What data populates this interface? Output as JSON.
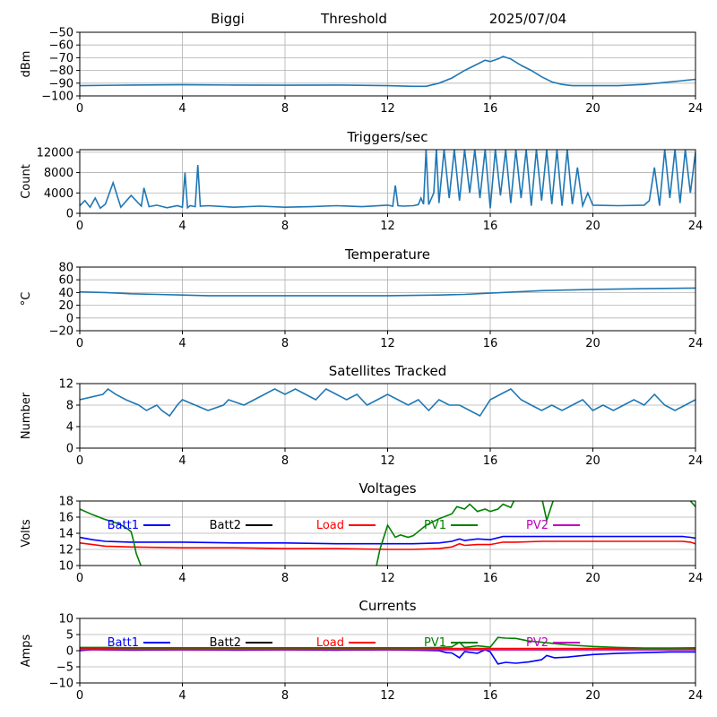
{
  "header": {
    "station": "Biggi",
    "mode": "Threshold",
    "date": "2025/07/04"
  },
  "legend": [
    {
      "label": "Batt1",
      "color": "#0000ff"
    },
    {
      "label": "Batt2",
      "color": "#000000"
    },
    {
      "label": "Load",
      "color": "#ff0000"
    },
    {
      "label": "PV1",
      "color": "#008000"
    },
    {
      "label": "PV2",
      "color": "#c000c0"
    }
  ],
  "chart_data": [
    {
      "type": "line",
      "title": "",
      "ylabel": "dBm",
      "xlabel": "",
      "xlim": [
        0,
        24
      ],
      "ylim": [
        -100,
        -50
      ],
      "xticks": [
        0,
        4,
        8,
        12,
        16,
        20,
        24
      ],
      "yticks": [
        -100,
        -90,
        -80,
        -70,
        -60,
        -50
      ],
      "grid": true,
      "series": [
        {
          "color": "#1f77b4",
          "x": [
            0,
            2,
            4,
            6,
            8,
            10,
            12,
            13,
            13.5,
            14,
            14.5,
            15,
            15.5,
            15.8,
            16,
            16.3,
            16.5,
            16.8,
            17.2,
            17.6,
            18,
            18.4,
            18.8,
            19.2,
            20,
            21,
            22,
            22.5,
            23,
            23.5,
            24
          ],
          "y": [
            -92,
            -91.5,
            -91.3,
            -91.5,
            -91.6,
            -91.5,
            -92,
            -92.5,
            -92.5,
            -90,
            -86,
            -80,
            -75,
            -72,
            -73,
            -71,
            -69,
            -71,
            -76,
            -80,
            -85,
            -89,
            -91,
            -92,
            -92,
            -92,
            -91,
            -90,
            -89,
            -88,
            -87
          ]
        }
      ]
    },
    {
      "type": "line",
      "title": "Triggers/sec",
      "ylabel": "Count",
      "xlabel": "",
      "xlim": [
        0,
        24
      ],
      "ylim": [
        0,
        12500
      ],
      "xticks": [
        0,
        4,
        8,
        12,
        16,
        20,
        24
      ],
      "yticks": [
        0,
        4000,
        8000,
        12000
      ],
      "grid": true,
      "series": [
        {
          "color": "#1f77b4",
          "x": [
            0,
            0.2,
            0.4,
            0.6,
            0.8,
            1.0,
            1.3,
            1.6,
            2.0,
            2.4,
            2.5,
            2.7,
            3.0,
            3.4,
            3.8,
            4.0,
            4.1,
            4.2,
            4.3,
            4.5,
            4.6,
            4.7,
            5.0,
            6.0,
            7.0,
            8.0,
            9.0,
            10.0,
            11.0,
            12.0,
            12.2,
            12.3,
            12.4,
            12.6,
            13.0,
            13.2,
            13.3,
            13.4,
            13.5,
            13.6,
            13.8,
            13.9,
            14.0,
            14.2,
            14.4,
            14.6,
            14.8,
            15.0,
            15.2,
            15.4,
            15.6,
            15.8,
            16.0,
            16.2,
            16.4,
            16.6,
            16.8,
            17.0,
            17.2,
            17.4,
            17.6,
            17.8,
            18.0,
            18.2,
            18.4,
            18.6,
            18.8,
            19.0,
            19.2,
            19.4,
            19.6,
            19.8,
            20.0,
            21.0,
            22.0,
            22.2,
            22.4,
            22.6,
            22.8,
            23.0,
            23.2,
            23.4,
            23.6,
            23.8,
            24
          ],
          "y": [
            1500,
            2500,
            1200,
            3000,
            1000,
            1800,
            6000,
            1200,
            3500,
            1400,
            5000,
            1300,
            1600,
            1100,
            1500,
            1200,
            8000,
            1100,
            1500,
            1300,
            9500,
            1400,
            1500,
            1200,
            1400,
            1200,
            1300,
            1500,
            1300,
            1600,
            1400,
            5500,
            1500,
            1400,
            1500,
            1700,
            3000,
            1800,
            12500,
            1700,
            4000,
            12500,
            2000,
            12500,
            3000,
            12500,
            2500,
            12500,
            4000,
            12500,
            3000,
            12500,
            1000,
            12500,
            3500,
            12500,
            2000,
            12500,
            3000,
            12500,
            1500,
            12500,
            2500,
            12500,
            1800,
            12500,
            1500,
            12500,
            1800,
            9000,
            1500,
            4000,
            1600,
            1500,
            1600,
            2500,
            9000,
            1500,
            12500,
            3000,
            12500,
            2000,
            12500,
            4000,
            12000
          ]
        }
      ]
    },
    {
      "type": "line",
      "title": "Temperature",
      "ylabel": "°C",
      "xlabel": "",
      "xlim": [
        0,
        24
      ],
      "ylim": [
        -20,
        80
      ],
      "xticks": [
        0,
        4,
        8,
        12,
        16,
        20,
        24
      ],
      "yticks": [
        -20,
        0,
        20,
        40,
        60,
        80
      ],
      "grid": true,
      "series": [
        {
          "color": "#1f77b4",
          "x": [
            0,
            1,
            2,
            3,
            4,
            5,
            8,
            12,
            14,
            15,
            16,
            17,
            18,
            19,
            20,
            22,
            24
          ],
          "y": [
            41,
            40,
            38,
            37,
            36,
            35,
            35,
            35,
            36,
            37,
            39,
            41,
            43,
            44,
            45,
            46,
            47
          ]
        }
      ]
    },
    {
      "type": "line",
      "title": "Satellites Tracked",
      "ylabel": "Number",
      "xlabel": "",
      "xlim": [
        0,
        24
      ],
      "ylim": [
        0,
        12
      ],
      "xticks": [
        0,
        4,
        8,
        12,
        16,
        20,
        24
      ],
      "yticks": [
        0,
        4,
        8,
        12
      ],
      "grid": true,
      "series": [
        {
          "color": "#1f77b4",
          "x": [
            0,
            0.9,
            1.1,
            1.4,
            1.8,
            2.3,
            2.6,
            3.0,
            3.2,
            3.5,
            3.8,
            4.0,
            4.5,
            5.0,
            5.6,
            5.8,
            6.4,
            6.8,
            7.2,
            7.6,
            8.0,
            8.4,
            8.8,
            9.2,
            9.6,
            10.0,
            10.4,
            10.8,
            11.2,
            11.6,
            12.0,
            12.4,
            12.8,
            13.2,
            13.6,
            14.0,
            14.4,
            14.8,
            15.2,
            15.6,
            16.0,
            16.4,
            16.8,
            17.2,
            17.6,
            18.0,
            18.4,
            18.8,
            19.2,
            19.6,
            20.0,
            20.4,
            20.8,
            21.2,
            21.6,
            22.0,
            22.4,
            22.8,
            23.2,
            23.6,
            24
          ],
          "y": [
            9,
            10,
            11,
            10,
            9,
            8,
            7,
            8,
            7,
            6,
            8,
            9,
            8,
            7,
            8,
            9,
            8,
            9,
            10,
            11,
            10,
            11,
            10,
            9,
            11,
            10,
            9,
            10,
            8,
            9,
            10,
            9,
            8,
            9,
            7,
            9,
            8,
            8,
            7,
            6,
            9,
            10,
            11,
            9,
            8,
            7,
            8,
            7,
            8,
            9,
            7,
            8,
            7,
            8,
            9,
            8,
            10,
            8,
            7,
            8,
            9
          ]
        }
      ]
    },
    {
      "type": "line",
      "title": "Voltages",
      "ylabel": "Volts",
      "xlabel": "",
      "xlim": [
        0,
        24
      ],
      "ylim": [
        10,
        18
      ],
      "xticks": [
        0,
        4,
        8,
        12,
        16,
        20,
        24
      ],
      "yticks": [
        10,
        12,
        14,
        16,
        18
      ],
      "grid": true,
      "series": [
        {
          "name": "Batt1",
          "color": "#0000ff",
          "x": [
            0,
            0.5,
            1,
            2,
            4,
            6,
            8,
            10,
            12,
            13,
            14,
            14.5,
            14.8,
            15,
            15.5,
            16,
            16.5,
            17,
            18,
            20,
            22,
            23.5,
            23.8,
            24
          ],
          "y": [
            13.5,
            13.2,
            13.0,
            12.9,
            12.9,
            12.8,
            12.8,
            12.7,
            12.7,
            12.7,
            12.8,
            13.0,
            13.3,
            13.1,
            13.3,
            13.2,
            13.6,
            13.6,
            13.6,
            13.6,
            13.6,
            13.6,
            13.5,
            13.4
          ]
        },
        {
          "name": "Load",
          "color": "#ff0000",
          "x": [
            0,
            0.5,
            1,
            2,
            4,
            6,
            8,
            10,
            12,
            13,
            14,
            14.5,
            14.8,
            15,
            15.5,
            16,
            16.5,
            17,
            18,
            20,
            22,
            23.5,
            23.8,
            24
          ],
          "y": [
            12.8,
            12.6,
            12.4,
            12.3,
            12.2,
            12.2,
            12.1,
            12.1,
            12.0,
            12.0,
            12.1,
            12.3,
            12.7,
            12.5,
            12.6,
            12.6,
            12.9,
            12.9,
            13.0,
            13.0,
            13.0,
            13.0,
            12.9,
            12.7
          ]
        },
        {
          "name": "PV1",
          "color": "#008000",
          "x": [
            0,
            0.5,
            1,
            1.5,
            1.8,
            2.0,
            2.1,
            2.2,
            2.5,
            5,
            8,
            11.5,
            11.7,
            12.0,
            12.3,
            12.5,
            12.8,
            13.0,
            13.5,
            14.0,
            14.5,
            14.7,
            15.0,
            15.2,
            15.5,
            15.8,
            16.0,
            16.3,
            16.5,
            16.8,
            17.0,
            17.5,
            18.0,
            18.2,
            18.5,
            19,
            21,
            23.5,
            23.8,
            24
          ],
          "y": [
            17.0,
            16.3,
            15.7,
            15.2,
            14.7,
            14.2,
            13.0,
            11.5,
            9.0,
            9.0,
            9.0,
            9.0,
            12.0,
            15.0,
            13.5,
            13.8,
            13.5,
            13.7,
            15.0,
            15.8,
            16.4,
            17.3,
            17.0,
            17.6,
            16.7,
            17.0,
            16.7,
            17.0,
            17.6,
            17.2,
            18.5,
            18.5,
            18.5,
            15.6,
            18.5,
            18.5,
            18.5,
            18.5,
            18.0,
            17.3
          ]
        }
      ]
    },
    {
      "type": "line",
      "title": "Currents",
      "ylabel": "Amps",
      "xlabel": "",
      "xlim": [
        0,
        24
      ],
      "ylim": [
        -10,
        10
      ],
      "xticks": [
        0,
        4,
        8,
        12,
        16,
        20,
        24
      ],
      "yticks": [
        -10,
        -5,
        0,
        5,
        10
      ],
      "grid": true,
      "series": [
        {
          "name": "Batt1",
          "color": "#0000ff",
          "x": [
            0,
            0.5,
            1,
            2,
            4,
            6,
            8,
            10,
            12,
            13,
            14,
            14.3,
            14.5,
            14.8,
            15,
            15.5,
            15.8,
            16,
            16.3,
            16.6,
            17,
            17.5,
            18,
            18.2,
            18.5,
            19,
            20,
            21,
            22,
            23,
            24
          ],
          "y": [
            0.0,
            0.4,
            0.3,
            0.2,
            0.3,
            0.2,
            0.3,
            0.2,
            0.3,
            0.2,
            0.0,
            -0.6,
            -0.7,
            -2.2,
            -0.3,
            -0.8,
            0.3,
            -0.4,
            -4.1,
            -3.6,
            -3.9,
            -3.5,
            -2.8,
            -1.5,
            -2.2,
            -2.0,
            -1.2,
            -0.8,
            -0.6,
            -0.4,
            -0.4
          ]
        },
        {
          "name": "Load",
          "color": "#ff0000",
          "x": [
            0,
            2,
            4,
            6,
            8,
            10,
            12,
            14,
            16,
            18,
            20,
            22,
            24
          ],
          "y": [
            0.7,
            0.7,
            0.7,
            0.7,
            0.7,
            0.7,
            0.7,
            0.7,
            0.7,
            0.7,
            0.7,
            0.7,
            0.7
          ]
        },
        {
          "name": "PV1",
          "color": "#008000",
          "x": [
            0,
            1,
            2,
            4,
            6,
            8,
            10,
            12,
            13,
            14,
            14.5,
            14.8,
            15,
            15.5,
            16,
            16.3,
            16.6,
            17,
            17.5,
            18,
            18.5,
            19,
            20,
            21,
            22,
            23,
            24
          ],
          "y": [
            1.0,
            1.0,
            0.9,
            0.9,
            0.9,
            0.9,
            0.9,
            0.9,
            0.9,
            1.0,
            1.2,
            2.6,
            1.0,
            1.5,
            1.1,
            4.1,
            3.9,
            3.8,
            3.0,
            2.6,
            2.2,
            1.8,
            1.3,
            1.0,
            0.8,
            0.8,
            0.9
          ]
        },
        {
          "name": "PV2",
          "color": "#c000c0",
          "x": [
            0,
            2,
            4,
            6,
            8,
            10,
            12,
            14,
            16,
            18,
            20,
            22,
            24
          ],
          "y": [
            0.3,
            0.3,
            0.3,
            0.3,
            0.3,
            0.3,
            0.3,
            0.3,
            0.3,
            0.3,
            0.3,
            0.3,
            0.3
          ]
        }
      ]
    }
  ]
}
